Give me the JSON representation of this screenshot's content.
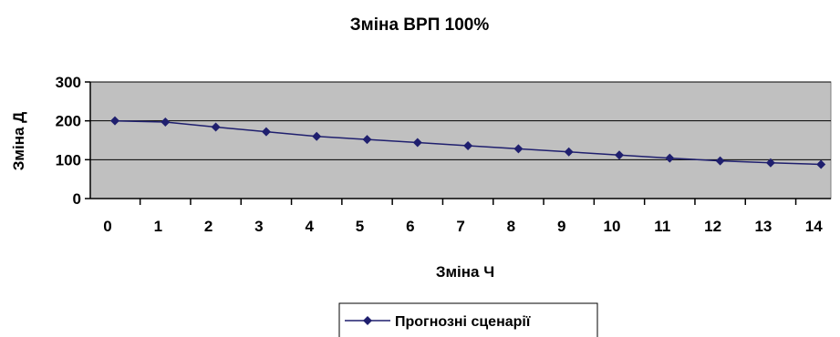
{
  "chart_data": {
    "type": "line",
    "title": "Зміна ВРП 100%",
    "xlabel": "Зміна Ч",
    "ylabel": "Зміна Д",
    "x": [
      0,
      1,
      2,
      3,
      4,
      5,
      6,
      7,
      8,
      9,
      10,
      11,
      12,
      13,
      14
    ],
    "series": [
      {
        "name": "Прогнозні сценарії",
        "values": [
          200,
          197,
          184,
          172,
          160,
          152,
          144,
          136,
          128,
          120,
          112,
          104,
          97,
          92,
          88
        ],
        "color": "#1f1f6e"
      }
    ],
    "ylim": [
      0,
      300
    ],
    "yticks": [
      0,
      100,
      200,
      300
    ],
    "xticks": [
      0,
      1,
      2,
      3,
      4,
      5,
      6,
      7,
      8,
      9,
      10,
      11,
      12,
      13,
      14
    ],
    "grid": "horizontal",
    "plot_background": "#c0c0c0",
    "legend_position": "bottom-center"
  }
}
